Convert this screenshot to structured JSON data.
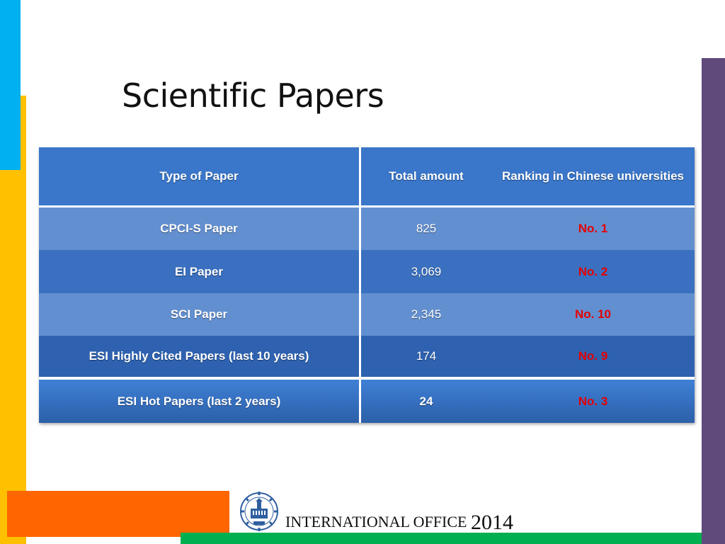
{
  "slide": {
    "title": "Scientific Papers"
  },
  "table": {
    "headers": [
      "Type of Paper",
      "Total amount",
      "Ranking in Chinese universities"
    ],
    "rows": [
      {
        "type": "CPCI-S Paper",
        "total": "825",
        "rank": "No. 1"
      },
      {
        "type": "EI Paper",
        "total": "3,069",
        "rank": "No. 2"
      },
      {
        "type": "SCI Paper",
        "total": "2,345",
        "rank": "No. 10"
      },
      {
        "type": "ESI Highly Cited Papers (last 10 years)",
        "total": "174",
        "rank": "No. 9"
      },
      {
        "type": "ESI Hot Papers (last 2 years)",
        "total": "24",
        "rank": "No. 3"
      }
    ]
  },
  "footer": {
    "org": "INTERNATIONAL OFFICE",
    "year": "2014",
    "logo_icon": "university-emblem-icon"
  },
  "colors": {
    "header_blue": "#3a76c9",
    "row_light": "#628fd0",
    "row_dark": "#3a70bf",
    "rank_red": "#e60000",
    "accent_yellow": "#ffc000",
    "accent_cyan": "#00b0f0",
    "accent_purple": "#604a7b",
    "accent_orange": "#ff6600",
    "accent_green": "#00b050"
  }
}
